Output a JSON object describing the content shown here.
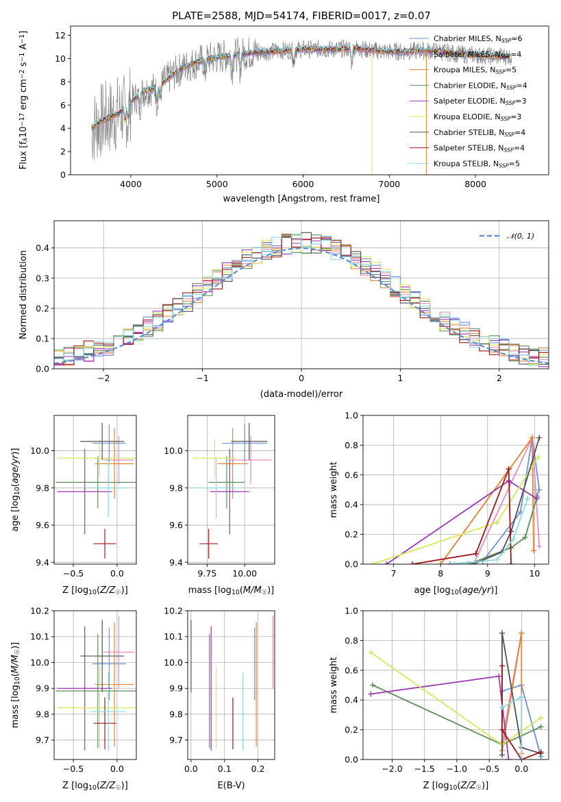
{
  "colors": {
    "Chabrier MILES": "#6a8fdc",
    "Salpeter MILES": "#e88abd",
    "Kroupa MILES": "#e6822d",
    "Chabrier ELODIE": "#5a8f5a",
    "Salpeter ELODIE": "#9b36b6",
    "Kroupa ELODIE": "#d6ea55",
    "Chabrier STELIB": "#505050",
    "Salpeter STELIB": "#a31616",
    "Kroupa STELIB": "#87dbe3"
  },
  "chart_data": [
    {
      "id": "spectrum",
      "type": "line",
      "title": "PLATE=2588, MJD=54174, FIBERID=0017, z=0.07",
      "xlabel": "wavelength [Angstrom, rest frame]",
      "ylabel": "Flux [f_λ10^-17 erg cm^-2 s^-1 A^-1]",
      "xlim": [
        3300,
        8850
      ],
      "ylim": [
        0,
        12.8
      ],
      "xticks": [
        4000,
        5000,
        6000,
        7000,
        8000
      ],
      "yticks": [
        0,
        2,
        4,
        6,
        8,
        10,
        12
      ],
      "legend_position": "upper-right",
      "series": [
        {
          "name": "Chabrier MILES",
          "nssp": "6"
        },
        {
          "name": "Salpeter MILES",
          "nssp": "4"
        },
        {
          "name": "Kroupa MILES",
          "nssp": "5"
        },
        {
          "name": "Chabrier ELODIE",
          "nssp": "4"
        },
        {
          "name": "Salpeter ELODIE",
          "nssp": "3"
        },
        {
          "name": "Kroupa ELODIE",
          "nssp": "3"
        },
        {
          "name": "Chabrier STELIB",
          "nssp": "4"
        },
        {
          "name": "Salpeter STELIB",
          "nssp": "4"
        },
        {
          "name": "Kroupa STELIB",
          "nssp": "5"
        }
      ],
      "continuum_points": [
        [
          3550,
          4.0
        ],
        [
          3650,
          4.6
        ],
        [
          3750,
          4.9
        ],
        [
          3850,
          5.3
        ],
        [
          3950,
          5.9
        ],
        [
          4050,
          6.6
        ],
        [
          4150,
          7.2
        ],
        [
          4300,
          7.5
        ],
        [
          4400,
          8.1
        ],
        [
          4500,
          8.7
        ],
        [
          4600,
          9.2
        ],
        [
          4800,
          9.8
        ],
        [
          5000,
          10.1
        ],
        [
          5200,
          10.3
        ],
        [
          5400,
          10.5
        ],
        [
          5600,
          10.6
        ],
        [
          5800,
          10.7
        ],
        [
          6000,
          10.8
        ],
        [
          6200,
          10.8
        ],
        [
          6400,
          10.8
        ],
        [
          6600,
          10.9
        ],
        [
          6800,
          10.7
        ],
        [
          7000,
          10.6
        ],
        [
          7200,
          10.6
        ],
        [
          7400,
          10.7
        ],
        [
          7600,
          10.6
        ],
        [
          7800,
          10.4
        ],
        [
          8000,
          10.3
        ],
        [
          8200,
          10.2
        ],
        [
          8400,
          10.2
        ]
      ]
    },
    {
      "id": "residuals",
      "type": "line",
      "xlabel": "(data-model)/error",
      "ylabel": "Normed distribution",
      "xlim": [
        -2.5,
        2.5
      ],
      "ylim": [
        0,
        0.49
      ],
      "xticks": [
        -2,
        -1,
        0,
        1,
        2
      ],
      "yticks": [
        0.0,
        0.1,
        0.2,
        0.3,
        0.4
      ],
      "grid": true,
      "legend_position": "upper-right",
      "normal_label": "𝒩(0, 1)",
      "bin_width": 0.1
    },
    {
      "id": "age-vs-z",
      "type": "scatter",
      "xlabel": "Z [log10(Z/Z☉)]",
      "ylabel": "age  [log10(age/yr)]",
      "xlim": [
        -0.72,
        0.22
      ],
      "ylim": [
        9.39,
        10.19
      ],
      "xticks": [
        -0.5,
        0.0
      ],
      "yticks": [
        9.4,
        9.6,
        9.8,
        10.0
      ],
      "grid": true,
      "points": [
        {
          "name": "Chabrier MILES",
          "x": -0.09,
          "xerr": 0.19,
          "y": 10.04,
          "yerr": 0.1
        },
        {
          "name": "Salpeter MILES",
          "x": 0.02,
          "xerr": 0.18,
          "y": 9.95,
          "yerr": 0.13
        },
        {
          "name": "Kroupa MILES",
          "x": -0.03,
          "xerr": 0.22,
          "y": 9.93,
          "yerr": 0.19
        },
        {
          "name": "Chabrier ELODIE",
          "x": -0.22,
          "xerr": 0.48,
          "y": 9.83,
          "yerr": 0.14
        },
        {
          "name": "Salpeter ELODIE",
          "x": -0.37,
          "xerr": 0.31,
          "y": 9.78,
          "yerr": 0.23
        },
        {
          "name": "Kroupa ELODIE",
          "x": -0.2,
          "xerr": 0.48,
          "y": 9.96,
          "yerr": 0.1
        },
        {
          "name": "Chabrier STELIB",
          "x": -0.17,
          "xerr": 0.25,
          "y": 10.05,
          "yerr": 0.1
        },
        {
          "name": "Salpeter STELIB",
          "x": -0.14,
          "xerr": 0.13,
          "y": 9.5,
          "yerr": 0.08
        },
        {
          "name": "Kroupa STELIB",
          "x": -0.1,
          "xerr": 0.2,
          "y": 9.8,
          "yerr": 0.16
        }
      ]
    },
    {
      "id": "age-vs-mass",
      "type": "scatter",
      "xlabel": "mass [log10(M/M☉)]",
      "xlim": [
        9.62,
        10.2
      ],
      "ylim": [
        9.39,
        10.19
      ],
      "xticks": [
        9.75,
        10.0
      ],
      "yticks": [
        9.4,
        9.6,
        9.8,
        10.0
      ],
      "grid": true,
      "points": [
        {
          "name": "Chabrier MILES",
          "x": 10.0,
          "xerr": 0.15,
          "y": 10.04,
          "yerr": 0.1
        },
        {
          "name": "Salpeter MILES",
          "x": 10.04,
          "xerr": 0.14,
          "y": 9.95,
          "yerr": 0.13
        },
        {
          "name": "Kroupa MILES",
          "x": 9.92,
          "xerr": 0.1,
          "y": 9.93,
          "yerr": 0.19
        },
        {
          "name": "Chabrier ELODIE",
          "x": 9.88,
          "xerr": 0.12,
          "y": 9.83,
          "yerr": 0.14
        },
        {
          "name": "Salpeter ELODIE",
          "x": 9.9,
          "xerr": 0.13,
          "y": 9.78,
          "yerr": 0.23
        },
        {
          "name": "Kroupa ELODIE",
          "x": 9.8,
          "xerr": 0.14,
          "y": 9.96,
          "yerr": 0.1
        },
        {
          "name": "Chabrier STELIB",
          "x": 10.03,
          "xerr": 0.12,
          "y": 10.05,
          "yerr": 0.1
        },
        {
          "name": "Salpeter STELIB",
          "x": 9.76,
          "xerr": 0.06,
          "y": 9.5,
          "yerr": 0.08
        },
        {
          "name": "Kroupa STELIB",
          "x": 9.81,
          "xerr": 0.13,
          "y": 9.8,
          "yerr": 0.16
        }
      ]
    },
    {
      "id": "weight-vs-age",
      "type": "line",
      "xlabel": "age  [log10(age/yr)]",
      "ylabel": "mass weight",
      "xlim": [
        6.35,
        10.3
      ],
      "ylim": [
        0,
        1
      ],
      "xticks": [
        7,
        8,
        9,
        10
      ],
      "yticks": [
        0.0,
        0.2,
        0.4,
        0.6,
        0.8,
        1.0
      ],
      "grid": true,
      "series": [
        {
          "name": "Chabrier MILES",
          "x": [
            8.2,
            8.9,
            9.7,
            9.95,
            10.1,
            10.05
          ],
          "y": [
            0.0,
            0.02,
            0.35,
            0.85,
            0.5,
            0.46
          ]
        },
        {
          "name": "Salpeter MILES",
          "x": [
            8.7,
            9.95,
            10.1
          ],
          "y": [
            0.0,
            0.85,
            0.12
          ]
        },
        {
          "name": "Kroupa MILES",
          "x": [
            8.0,
            9.95,
            9.98
          ],
          "y": [
            0.0,
            0.85,
            0.09
          ]
        },
        {
          "name": "Chabrier ELODIE",
          "x": [
            8.6,
            9.5,
            9.8,
            10.05
          ],
          "y": [
            0.0,
            0.11,
            0.18,
            0.45
          ]
        },
        {
          "name": "Salpeter ELODIE",
          "x": [
            6.85,
            9.45,
            10.05
          ],
          "y": [
            0.0,
            0.56,
            0.44
          ]
        },
        {
          "name": "Kroupa ELODIE",
          "x": [
            6.55,
            9.2,
            10.08
          ],
          "y": [
            0.0,
            0.28,
            0.72
          ]
        },
        {
          "name": "Chabrier STELIB",
          "x": [
            8.7,
            9.3,
            9.5,
            10.1
          ],
          "y": [
            0.0,
            0.08,
            0.22,
            0.85
          ]
        },
        {
          "name": "Salpeter STELIB",
          "x": [
            7.4,
            8.75,
            9.45,
            9.5
          ],
          "y": [
            0.0,
            0.07,
            0.64,
            0.0
          ]
        },
        {
          "name": "Kroupa STELIB",
          "x": [
            8.3,
            9.2,
            9.55,
            9.85
          ],
          "y": [
            0.0,
            0.03,
            0.17,
            0.44
          ]
        }
      ]
    },
    {
      "id": "mass-vs-z",
      "type": "scatter",
      "xlabel": "Z [log10(Z/Z☉)]",
      "ylabel": "mass [log10(M/M☉)]",
      "xlim": [
        -0.72,
        0.22
      ],
      "ylim": [
        9.625,
        10.2
      ],
      "xticks": [
        -0.5,
        0.0
      ],
      "yticks": [
        9.7,
        9.8,
        9.9,
        10.0,
        10.1,
        10.2
      ],
      "grid": true,
      "points": [
        {
          "name": "Chabrier MILES",
          "x": -0.09,
          "xerr": 0.19,
          "y": 9.995,
          "yerr": 0.14
        },
        {
          "name": "Salpeter MILES",
          "x": 0.02,
          "xerr": 0.18,
          "y": 10.04,
          "yerr": 0.14
        },
        {
          "name": "Kroupa MILES",
          "x": -0.03,
          "xerr": 0.22,
          "y": 9.915,
          "yerr": 0.24
        },
        {
          "name": "Chabrier ELODIE",
          "x": -0.22,
          "xerr": 0.48,
          "y": 9.89,
          "yerr": 0.22
        },
        {
          "name": "Salpeter ELODIE",
          "x": -0.37,
          "xerr": 0.31,
          "y": 9.9,
          "yerr": 0.24
        },
        {
          "name": "Kroupa ELODIE",
          "x": -0.2,
          "xerr": 0.48,
          "y": 9.825,
          "yerr": 0.16
        },
        {
          "name": "Chabrier STELIB",
          "x": -0.17,
          "xerr": 0.25,
          "y": 10.025,
          "yerr": 0.14
        },
        {
          "name": "Salpeter STELIB",
          "x": -0.14,
          "xerr": 0.13,
          "y": 9.765,
          "yerr": 0.1
        },
        {
          "name": "Kroupa STELIB",
          "x": -0.1,
          "xerr": 0.2,
          "y": 9.81,
          "yerr": 0.15
        }
      ]
    },
    {
      "id": "mass-vs-ebv",
      "type": "scatter",
      "xlabel": "E(B-V)",
      "xlim": [
        -0.01,
        0.25
      ],
      "ylim": [
        9.625,
        10.2
      ],
      "xticks": [
        0.0,
        0.1,
        0.2
      ],
      "yticks": [
        9.7,
        9.8,
        9.9,
        10.0,
        10.1,
        10.2
      ],
      "grid": true,
      "points": [
        {
          "name": "Chabrier MILES",
          "x": 0.19,
          "y": 9.995,
          "yerr": 0.14
        },
        {
          "name": "Salpeter MILES",
          "x": 0.245,
          "y": 10.04,
          "yerr": 0.14
        },
        {
          "name": "Kroupa MILES",
          "x": 0.195,
          "y": 9.915,
          "yerr": 0.24
        },
        {
          "name": "Chabrier ELODIE",
          "x": 0.055,
          "y": 9.89,
          "yerr": 0.22
        },
        {
          "name": "Salpeter ELODIE",
          "x": 0.06,
          "y": 9.9,
          "yerr": 0.24
        },
        {
          "name": "Kroupa ELODIE",
          "x": 0.075,
          "y": 9.825,
          "yerr": 0.16
        },
        {
          "name": "Chabrier STELIB",
          "x": 0.0,
          "y": 10.025,
          "yerr": 0.14
        },
        {
          "name": "Salpeter STELIB",
          "x": 0.125,
          "y": 9.765,
          "yerr": 0.1
        },
        {
          "name": "Kroupa STELIB",
          "x": 0.155,
          "y": 9.81,
          "yerr": 0.15
        }
      ]
    },
    {
      "id": "weight-vs-z",
      "type": "line",
      "xlabel": "Z [log10(Z/Z☉)]",
      "ylabel": "mass weight",
      "xlim": [
        -2.45,
        0.42
      ],
      "ylim": [
        0,
        1
      ],
      "xticks": [
        -2.0,
        -1.5,
        -1.0,
        -0.5,
        0.0
      ],
      "yticks": [
        0.0,
        0.2,
        0.4,
        0.6,
        0.8,
        1.0
      ],
      "grid": true,
      "series": [
        {
          "name": "Chabrier MILES",
          "x": [
            -0.3,
            0.0,
            0.3
          ],
          "y": [
            0.46,
            0.5,
            0.02
          ]
        },
        {
          "name": "Salpeter MILES",
          "x": [
            -0.3,
            0.0
          ],
          "y": [
            0.12,
            0.85
          ]
        },
        {
          "name": "Kroupa MILES",
          "x": [
            -0.3,
            0.0,
            0.0
          ],
          "y": [
            0.06,
            0.85,
            0.04
          ]
        },
        {
          "name": "Chabrier ELODIE",
          "x": [
            -2.3,
            -0.3,
            0.3
          ],
          "y": [
            0.5,
            0.1,
            0.22
          ]
        },
        {
          "name": "Salpeter ELODIE",
          "x": [
            -2.33,
            -0.35,
            -0.2
          ],
          "y": [
            0.44,
            0.56,
            0.0
          ]
        },
        {
          "name": "Kroupa ELODIE",
          "x": [
            -2.33,
            -0.3,
            0.3
          ],
          "y": [
            0.72,
            0.1,
            0.28
          ]
        },
        {
          "name": "Chabrier STELIB",
          "x": [
            -0.3,
            -0.3,
            0.0,
            0.3
          ],
          "y": [
            0.03,
            0.85,
            0.08,
            0.04
          ]
        },
        {
          "name": "Salpeter STELIB",
          "x": [
            -0.3,
            -0.3,
            0.0,
            0.3
          ],
          "y": [
            0.63,
            0.2,
            0.0,
            0.05
          ]
        },
        {
          "name": "Kroupa STELIB",
          "x": [
            -0.3,
            0.0,
            0.0
          ],
          "y": [
            0.35,
            0.42,
            0.0
          ]
        }
      ]
    }
  ]
}
